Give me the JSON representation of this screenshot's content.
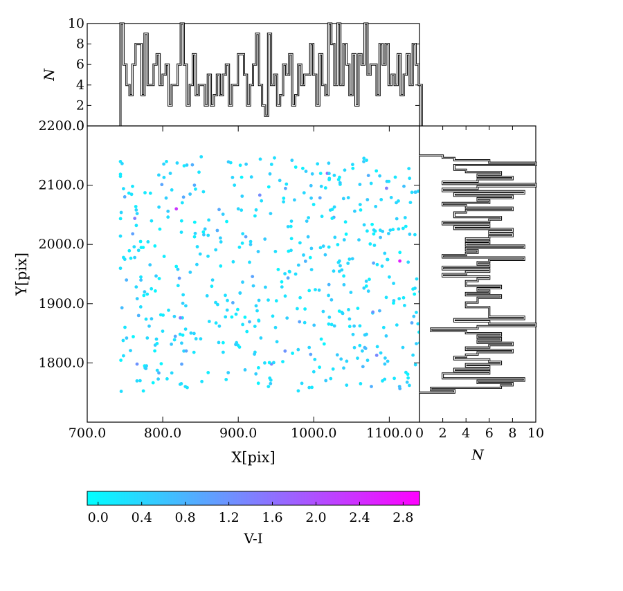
{
  "chart_data": [
    {
      "type": "scatter",
      "panel": "main",
      "xlabel": "X[pix]",
      "ylabel": "Y[pix]",
      "xlim": [
        700,
        1140
      ],
      "ylim": [
        1700,
        2200
      ],
      "xticks": [
        "700.0",
        "800.0",
        "900.0",
        "1000.0",
        "1100.0"
      ],
      "yticks": [
        "1800.0",
        "1900.0",
        "2000.0",
        "2100.0",
        "2200.0"
      ],
      "grid": false,
      "color_by": "V-I",
      "colormap": [
        "#00ffff",
        "#ff00ff"
      ],
      "point_color_hint": "most points have V-I between 0.0 and 0.8; a few reach 1.2-2.8",
      "point_count_approx": 520,
      "points": [
        {
          "x": 744,
          "y": 2140,
          "c": 0.2
        },
        {
          "x": 744,
          "y": 2115,
          "c": 0.2
        },
        {
          "x": 748,
          "y": 2094,
          "c": 0.3
        },
        {
          "x": 745,
          "y": 2054,
          "c": 0.4
        },
        {
          "x": 744,
          "y": 2014,
          "c": 0.3
        },
        {
          "x": 748,
          "y": 1978,
          "c": 0.2
        },
        {
          "x": 752,
          "y": 1940,
          "c": 0.8
        },
        {
          "x": 746,
          "y": 1893,
          "c": 0.7
        },
        {
          "x": 750,
          "y": 1860,
          "c": 0.2
        },
        {
          "x": 748,
          "y": 1812,
          "c": 0.3
        },
        {
          "x": 745,
          "y": 1752,
          "c": 0.3
        },
        {
          "x": 760,
          "y": 2098,
          "c": 0.2
        },
        {
          "x": 765,
          "y": 2032,
          "c": 0.2
        },
        {
          "x": 768,
          "y": 1990,
          "c": 0.3
        },
        {
          "x": 771,
          "y": 1945,
          "c": 0.2
        },
        {
          "x": 768,
          "y": 1880,
          "c": 0.8
        },
        {
          "x": 766,
          "y": 1798,
          "c": 1.2
        },
        {
          "x": 770,
          "y": 1770,
          "c": 0.3
        },
        {
          "x": 776,
          "y": 1920,
          "c": 0.5
        },
        {
          "x": 782,
          "y": 1862,
          "c": 0.5
        },
        {
          "x": 790,
          "y": 1830,
          "c": 0.5
        },
        {
          "x": 795,
          "y": 2063,
          "c": 0.4
        },
        {
          "x": 805,
          "y": 2140,
          "c": 0.2
        },
        {
          "x": 810,
          "y": 2120,
          "c": 0.4
        },
        {
          "x": 812,
          "y": 2092,
          "c": 0.3
        },
        {
          "x": 818,
          "y": 2060,
          "c": 2.3
        },
        {
          "x": 820,
          "y": 1958,
          "c": 0.5
        },
        {
          "x": 822,
          "y": 1943,
          "c": 1.1
        },
        {
          "x": 826,
          "y": 1876,
          "c": 0.3
        },
        {
          "x": 828,
          "y": 1820,
          "c": 0.4
        },
        {
          "x": 830,
          "y": 1760,
          "c": 0.3
        },
        {
          "x": 842,
          "y": 2100,
          "c": 0.9
        },
        {
          "x": 848,
          "y": 2122,
          "c": 0.2
        },
        {
          "x": 851,
          "y": 2148,
          "c": 0.3
        },
        {
          "x": 856,
          "y": 2026,
          "c": 0.5
        },
        {
          "x": 860,
          "y": 1980,
          "c": 0.3
        },
        {
          "x": 866,
          "y": 1940,
          "c": 0.4
        },
        {
          "x": 870,
          "y": 1902,
          "c": 0.3
        },
        {
          "x": 875,
          "y": 1862,
          "c": 0.4
        },
        {
          "x": 880,
          "y": 1818,
          "c": 0.3
        },
        {
          "x": 884,
          "y": 1772,
          "c": 0.2
        },
        {
          "x": 890,
          "y": 2138,
          "c": 0.2
        },
        {
          "x": 895,
          "y": 2100,
          "c": 0.3
        },
        {
          "x": 900,
          "y": 2060,
          "c": 0.4
        },
        {
          "x": 906,
          "y": 2018,
          "c": 0.3
        },
        {
          "x": 910,
          "y": 2013,
          "c": 1.0
        },
        {
          "x": 915,
          "y": 1970,
          "c": 0.3
        },
        {
          "x": 920,
          "y": 1930,
          "c": 0.5
        },
        {
          "x": 925,
          "y": 1888,
          "c": 0.3
        },
        {
          "x": 930,
          "y": 1842,
          "c": 0.4
        },
        {
          "x": 935,
          "y": 1800,
          "c": 0.3
        },
        {
          "x": 940,
          "y": 1760,
          "c": 0.2
        },
        {
          "x": 944,
          "y": 1798,
          "c": 1.3
        },
        {
          "x": 948,
          "y": 2146,
          "c": 0.3
        },
        {
          "x": 955,
          "y": 2108,
          "c": 0.4
        },
        {
          "x": 960,
          "y": 2072,
          "c": 0.3
        },
        {
          "x": 962,
          "y": 1820,
          "c": 1.2
        },
        {
          "x": 966,
          "y": 2030,
          "c": 0.4
        },
        {
          "x": 970,
          "y": 1990,
          "c": 0.3
        },
        {
          "x": 976,
          "y": 1950,
          "c": 0.3
        },
        {
          "x": 982,
          "y": 1910,
          "c": 0.2
        },
        {
          "x": 988,
          "y": 1868,
          "c": 0.3
        },
        {
          "x": 994,
          "y": 1826,
          "c": 0.4
        },
        {
          "x": 1000,
          "y": 1785,
          "c": 0.3
        },
        {
          "x": 1005,
          "y": 2136,
          "c": 0.3
        },
        {
          "x": 1010,
          "y": 2098,
          "c": 0.4
        },
        {
          "x": 1018,
          "y": 2120,
          "c": 1.8
        },
        {
          "x": 1022,
          "y": 2058,
          "c": 0.3
        },
        {
          "x": 1028,
          "y": 2012,
          "c": 0.4
        },
        {
          "x": 1034,
          "y": 1972,
          "c": 0.3
        },
        {
          "x": 1040,
          "y": 1932,
          "c": 0.5
        },
        {
          "x": 1046,
          "y": 1890,
          "c": 0.3
        },
        {
          "x": 1052,
          "y": 1848,
          "c": 0.4
        },
        {
          "x": 1058,
          "y": 1808,
          "c": 0.3
        },
        {
          "x": 1062,
          "y": 1765,
          "c": 0.2
        },
        {
          "x": 1070,
          "y": 2142,
          "c": 0.2
        },
        {
          "x": 1076,
          "y": 2103,
          "c": 0.3
        },
        {
          "x": 1082,
          "y": 2064,
          "c": 0.4
        },
        {
          "x": 1088,
          "y": 2024,
          "c": 0.3
        },
        {
          "x": 1094,
          "y": 1985,
          "c": 0.4
        },
        {
          "x": 1100,
          "y": 1945,
          "c": 0.3
        },
        {
          "x": 1106,
          "y": 1905,
          "c": 0.5
        },
        {
          "x": 1110,
          "y": 1864,
          "c": 0.3
        },
        {
          "x": 1114,
          "y": 1972,
          "c": 2.6
        },
        {
          "x": 1118,
          "y": 1826,
          "c": 0.4
        },
        {
          "x": 1122,
          "y": 1784,
          "c": 0.2
        },
        {
          "x": 1126,
          "y": 2128,
          "c": 0.3
        },
        {
          "x": 1130,
          "y": 2088,
          "c": 0.3
        },
        {
          "x": 1134,
          "y": 1926,
          "c": 0.4
        },
        {
          "x": 1138,
          "y": 1866,
          "c": 0.3
        }
      ]
    },
    {
      "type": "bar",
      "panel": "top-histogram",
      "style": "step",
      "ylabel": "N",
      "xlim": [
        700,
        1140
      ],
      "ylim": [
        0,
        10
      ],
      "yticks": [
        "0",
        "2",
        "4",
        "6",
        "8",
        "10"
      ],
      "bins": [
        744,
        1143
      ],
      "values_hint": "counts per narrow X bin, ranging about 1-10"
    },
    {
      "type": "bar",
      "panel": "right-histogram",
      "style": "step",
      "orientation": "horizontal",
      "xlabel": "N",
      "xlim": [
        0,
        10
      ],
      "xticks": [
        "0",
        "2",
        "4",
        "6",
        "8",
        "10"
      ],
      "bins": [
        1750,
        2150
      ],
      "values_hint": "counts per narrow Y bin, ranging about 2-10"
    },
    {
      "type": "colorbar",
      "panel": "colorbar",
      "label": "V-I",
      "range": [
        -0.1,
        2.95
      ],
      "ticks": [
        "0.0",
        "0.4",
        "0.8",
        "1.2",
        "1.6",
        "2.0",
        "2.4",
        "2.8"
      ],
      "colors": [
        "#00ffff",
        "#ff00ff"
      ]
    }
  ]
}
